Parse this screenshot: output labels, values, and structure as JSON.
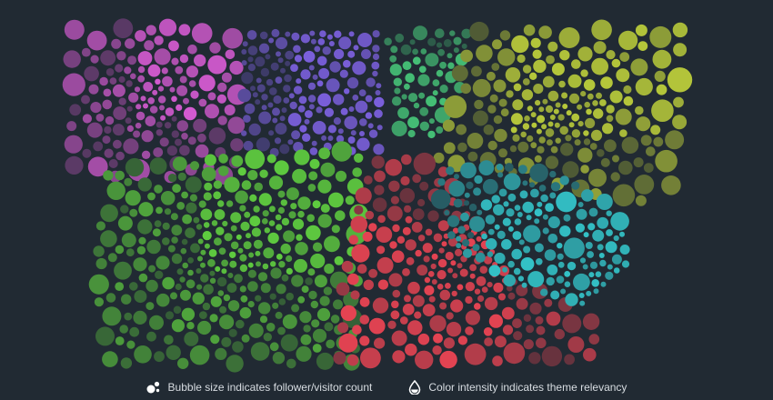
{
  "chart_data": {
    "type": "bubble-cluster",
    "background": "#212a33",
    "clusters": [
      {
        "name": "",
        "color": "#d35ad0",
        "shape": "pink",
        "bubble_count": 150
      },
      {
        "name": "",
        "color": "#7a5fdb",
        "shape": "purple",
        "bubble_count": 150
      },
      {
        "name": "",
        "color": "#45c076",
        "shape": "teal-green",
        "bubble_count": 60
      },
      {
        "name": "",
        "color": "#b7c93a",
        "shape": "olive",
        "bubble_count": 210
      },
      {
        "name": "",
        "color": "#5fcd3f",
        "shape": "green",
        "bubble_count": 330
      },
      {
        "name": "",
        "color": "#e54352",
        "shape": "red",
        "bubble_count": 300
      },
      {
        "name": "",
        "color": "#33c2c7",
        "shape": "cyan",
        "bubble_count": 200
      }
    ]
  },
  "legend": {
    "size_text": "Bubble size indicates follower/visitor count",
    "size_icon": "bubbles-icon",
    "color_text": "Color intensity indicates theme relevancy",
    "color_icon": "droplet-icon"
  }
}
